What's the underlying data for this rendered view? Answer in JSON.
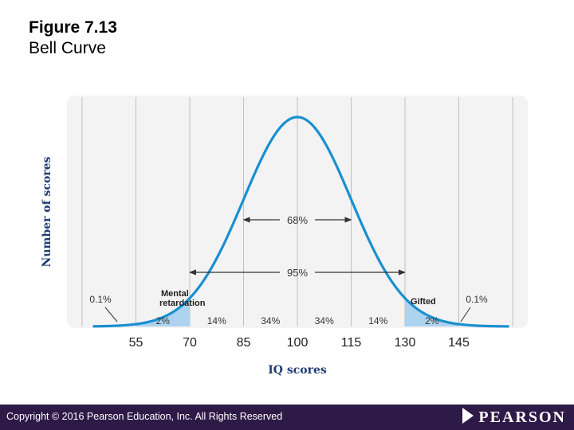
{
  "header": {
    "figure_number": "Figure 7.13",
    "figure_title": "Bell Curve"
  },
  "footer": {
    "copyright": "Copyright © 2016 Pearson Education, Inc. All Rights Reserved",
    "logo_text": "PEARSON"
  },
  "colors": {
    "curve": "#1a8fd0",
    "shade": "#aed3ef",
    "panel": "#f3f3f3",
    "grid": "#bfbfbf",
    "axis_text": "#1f3c73",
    "footer_bg": "#2e1a47"
  },
  "chart_data": {
    "type": "area",
    "title": "",
    "xlabel": "IQ scores",
    "ylabel": "Number of scores",
    "distribution": {
      "mean": 100,
      "sd": 15
    },
    "xlim": [
      40,
      160
    ],
    "x_ticks": [
      55,
      70,
      85,
      100,
      115,
      130,
      145
    ],
    "gridlines_x": [
      55,
      70,
      85,
      100,
      115,
      130,
      145
    ],
    "shaded_regions": [
      {
        "from": 55,
        "to": 70,
        "label": "Mental retardation"
      },
      {
        "from": 130,
        "to": 145,
        "label": "Gifted"
      }
    ],
    "segment_percentages": [
      {
        "from": 55,
        "to": 70,
        "label": "2%"
      },
      {
        "from": 70,
        "to": 85,
        "label": "14%"
      },
      {
        "from": 85,
        "to": 100,
        "label": "34%"
      },
      {
        "from": 100,
        "to": 115,
        "label": "34%"
      },
      {
        "from": 115,
        "to": 130,
        "label": "14%"
      },
      {
        "from": 130,
        "to": 145,
        "label": "2%"
      }
    ],
    "tail_labels": [
      {
        "side": "left",
        "label": "0.1%"
      },
      {
        "side": "right",
        "label": "0.1%"
      }
    ],
    "ranges": [
      {
        "from": 85,
        "to": 115,
        "label": "68%"
      },
      {
        "from": 70,
        "to": 130,
        "label": "95%"
      }
    ],
    "grid": true,
    "legend": "none"
  }
}
